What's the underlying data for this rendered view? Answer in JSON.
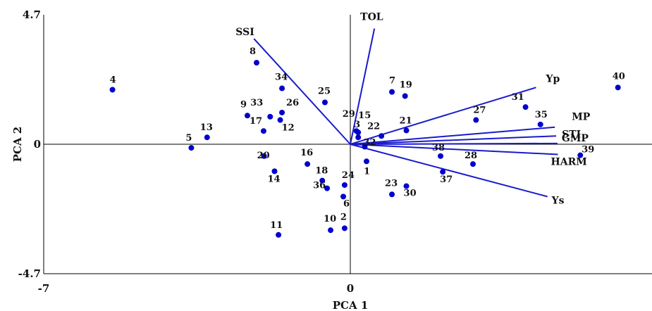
{
  "chart_data": {
    "type": "scatter",
    "subtype": "biplot",
    "title": "",
    "xlabel": "PCA 1",
    "ylabel": "PCA 2",
    "xlim": [
      -7,
      7
    ],
    "ylim": [
      -4.7,
      4.7
    ],
    "x_ticks": [
      "-7",
      "0",
      ""
    ],
    "y_ticks": [
      "4.7",
      "0",
      "-4.7"
    ],
    "grid": false,
    "legend": "none",
    "colors": {
      "points": "#0000cc",
      "vectors": "#1a1acc",
      "axes": "#000000",
      "text": "#111111"
    },
    "points": [
      {
        "label": "1",
        "x": 0.37,
        "y": -0.62
      },
      {
        "label": "2",
        "x": -0.13,
        "y": -3.05
      },
      {
        "label": "3",
        "x": 0.18,
        "y": 0.25
      },
      {
        "label": "4",
        "x": -5.43,
        "y": 1.98
      },
      {
        "label": "5",
        "x": -3.63,
        "y": -0.13
      },
      {
        "label": "6",
        "x": -0.16,
        "y": -1.9
      },
      {
        "label": "7",
        "x": 0.95,
        "y": 1.9
      },
      {
        "label": "8",
        "x": -2.14,
        "y": 2.96
      },
      {
        "label": "9",
        "x": -2.35,
        "y": 1.04
      },
      {
        "label": "10",
        "x": -0.45,
        "y": -3.12
      },
      {
        "label": "11",
        "x": -1.64,
        "y": -3.29
      },
      {
        "label": "12",
        "x": -1.6,
        "y": 0.88
      },
      {
        "label": "13",
        "x": -3.27,
        "y": 0.25
      },
      {
        "label": "14",
        "x": -1.73,
        "y": -0.98
      },
      {
        "label": "15",
        "x": 0.18,
        "y": 0.43
      },
      {
        "label": "16",
        "x": -0.98,
        "y": -0.72
      },
      {
        "label": "17",
        "x": -1.98,
        "y": 0.48
      },
      {
        "label": "18",
        "x": -0.64,
        "y": -1.32
      },
      {
        "label": "19",
        "x": 1.25,
        "y": 1.75
      },
      {
        "label": "20",
        "x": -1.97,
        "y": -0.43
      },
      {
        "label": "21",
        "x": 1.28,
        "y": 0.5
      },
      {
        "label": "22",
        "x": 0.71,
        "y": 0.3
      },
      {
        "label": "23",
        "x": 0.95,
        "y": -1.82
      },
      {
        "label": "24",
        "x": -0.13,
        "y": -1.48
      },
      {
        "label": "25",
        "x": -0.58,
        "y": 1.52
      },
      {
        "label": "26",
        "x": -1.56,
        "y": 1.15
      },
      {
        "label": "27",
        "x": 2.87,
        "y": 0.88
      },
      {
        "label": "28",
        "x": 2.8,
        "y": -0.72
      },
      {
        "label": "29",
        "x": 0.14,
        "y": 0.48
      },
      {
        "label": "30",
        "x": 1.28,
        "y": -1.52
      },
      {
        "label": "31",
        "x": 4.0,
        "y": 1.35
      },
      {
        "label": "32",
        "x": 0.33,
        "y": -0.09
      },
      {
        "label": "33",
        "x": -1.83,
        "y": 1.0
      },
      {
        "label": "34",
        "x": -1.56,
        "y": 2.03
      },
      {
        "label": "35",
        "x": 4.34,
        "y": 0.72
      },
      {
        "label": "36",
        "x": -0.53,
        "y": -1.6
      },
      {
        "label": "37",
        "x": 2.11,
        "y": -1.0
      },
      {
        "label": "38",
        "x": 2.06,
        "y": -0.43
      },
      {
        "label": "39",
        "x": 5.25,
        "y": -0.4
      },
      {
        "label": "40",
        "x": 6.11,
        "y": 2.06
      }
    ],
    "vectors": [
      {
        "label": "SSI",
        "x": -2.2,
        "y": 3.83
      },
      {
        "label": "TOL",
        "x": 0.55,
        "y": 4.2
      },
      {
        "label": "Yp",
        "x": 4.24,
        "y": 2.06
      },
      {
        "label": "MP",
        "x": 4.67,
        "y": 0.62
      },
      {
        "label": "STI",
        "x": 4.7,
        "y": 0.3
      },
      {
        "label": "GMP",
        "x": 4.73,
        "y": 0.03
      },
      {
        "label": "HARM",
        "x": 4.74,
        "y": -0.37
      },
      {
        "label": "Ys",
        "x": 4.5,
        "y": -1.9
      }
    ]
  }
}
